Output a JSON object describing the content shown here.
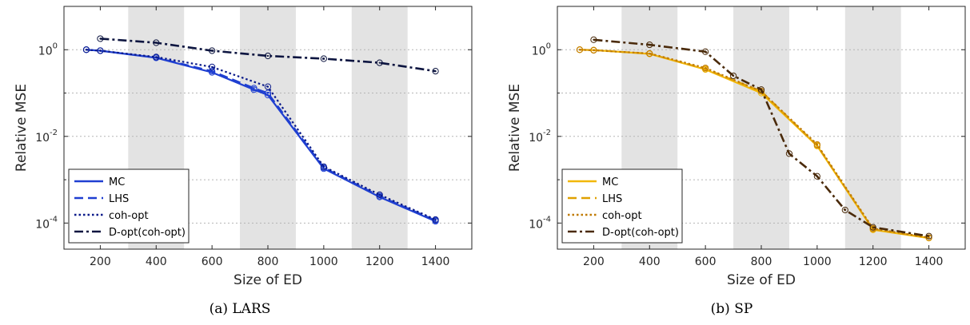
{
  "chart_data": [
    {
      "type": "line",
      "caption": "(a) LARS",
      "xlabel": "Size of ED",
      "ylabel": "Relative MSE",
      "xlim": [
        70,
        1530
      ],
      "ylim": [
        2.5e-05,
        10
      ],
      "yscale": "log",
      "xticks": [
        200,
        400,
        600,
        800,
        1000,
        1200,
        1400
      ],
      "yticks": [
        {
          "v": 0.0001,
          "base": "10",
          "exp": "-4"
        },
        {
          "v": 0.01,
          "base": "10",
          "exp": "-2"
        },
        {
          "v": 1,
          "base": "10",
          "exp": "0"
        }
      ],
      "minor_y": [
        0.001,
        0.1
      ],
      "shaded_bands": [
        [
          300,
          500
        ],
        [
          700,
          900
        ],
        [
          1100,
          1300
        ]
      ],
      "grid": true,
      "legend": "bottom-left",
      "series": [
        {
          "name": "MC",
          "style": "solid",
          "color": "#1f3fd1",
          "x": [
            150,
            200,
            400,
            600,
            750,
            800,
            1000,
            1200,
            1400
          ],
          "y": [
            1.0,
            0.95,
            0.65,
            0.3,
            0.12,
            0.09,
            0.0018,
            0.0004,
            0.00011
          ]
        },
        {
          "name": "LHS",
          "style": "dashed",
          "color": "#1f3fd1",
          "x": [
            150,
            200,
            400,
            600,
            750,
            800,
            1000,
            1200,
            1400
          ],
          "y": [
            1.0,
            0.95,
            0.66,
            0.32,
            0.13,
            0.1,
            0.0019,
            0.00042,
            0.000115
          ]
        },
        {
          "name": "coh-opt",
          "style": "dotted",
          "color": "#0a1a8a",
          "x": [
            150,
            200,
            400,
            600,
            800,
            1000,
            1200,
            1400
          ],
          "y": [
            1.0,
            0.95,
            0.68,
            0.4,
            0.14,
            0.002,
            0.00045,
            0.00012
          ]
        },
        {
          "name": "D-opt(coh-opt)",
          "style": "dashdot",
          "color": "#0d1540",
          "x": [
            200,
            400,
            600,
            800,
            1000,
            1200,
            1400
          ],
          "y": [
            1.8,
            1.45,
            0.95,
            0.72,
            0.62,
            0.5,
            0.32
          ]
        }
      ]
    },
    {
      "type": "line",
      "caption": "(b) SP",
      "xlabel": "Size of ED",
      "ylabel": "Relative MSE",
      "xlim": [
        70,
        1530
      ],
      "ylim": [
        2.5e-05,
        10
      ],
      "yscale": "log",
      "xticks": [
        200,
        400,
        600,
        800,
        1000,
        1200,
        1400
      ],
      "yticks": [
        {
          "v": 0.0001,
          "base": "10",
          "exp": "-4"
        },
        {
          "v": 0.01,
          "base": "10",
          "exp": "-2"
        },
        {
          "v": 1,
          "base": "10",
          "exp": "0"
        }
      ],
      "minor_y": [
        0.001,
        0.1
      ],
      "shaded_bands": [
        [
          300,
          500
        ],
        [
          700,
          900
        ],
        [
          1100,
          1300
        ]
      ],
      "grid": true,
      "legend": "bottom-left",
      "series": [
        {
          "name": "MC",
          "style": "solid",
          "color": "#f2b705",
          "x": [
            150,
            200,
            400,
            600,
            800,
            1000,
            1200,
            1400
          ],
          "y": [
            1.0,
            0.98,
            0.8,
            0.35,
            0.1,
            0.006,
            7e-05,
            4.5e-05
          ]
        },
        {
          "name": "LHS",
          "style": "dashed",
          "color": "#e0a000",
          "x": [
            150,
            200,
            400,
            600,
            800,
            1000,
            1200,
            1400
          ],
          "y": [
            1.0,
            0.98,
            0.81,
            0.36,
            0.11,
            0.0062,
            7.2e-05,
            4.6e-05
          ]
        },
        {
          "name": "coh-opt",
          "style": "dotted",
          "color": "#c07a00",
          "x": [
            150,
            200,
            400,
            600,
            800,
            1000,
            1200,
            1400
          ],
          "y": [
            1.0,
            0.97,
            0.82,
            0.38,
            0.11,
            0.0065,
            7.5e-05,
            4.6e-05
          ]
        },
        {
          "name": "D-opt(coh-opt)",
          "style": "dashdot",
          "color": "#4a2a0a",
          "x": [
            200,
            400,
            600,
            700,
            800,
            900,
            1000,
            1100,
            1200,
            1400
          ],
          "y": [
            1.7,
            1.3,
            0.9,
            0.25,
            0.12,
            0.004,
            0.0012,
            0.0002,
            8e-05,
            5e-05
          ]
        }
      ]
    }
  ]
}
